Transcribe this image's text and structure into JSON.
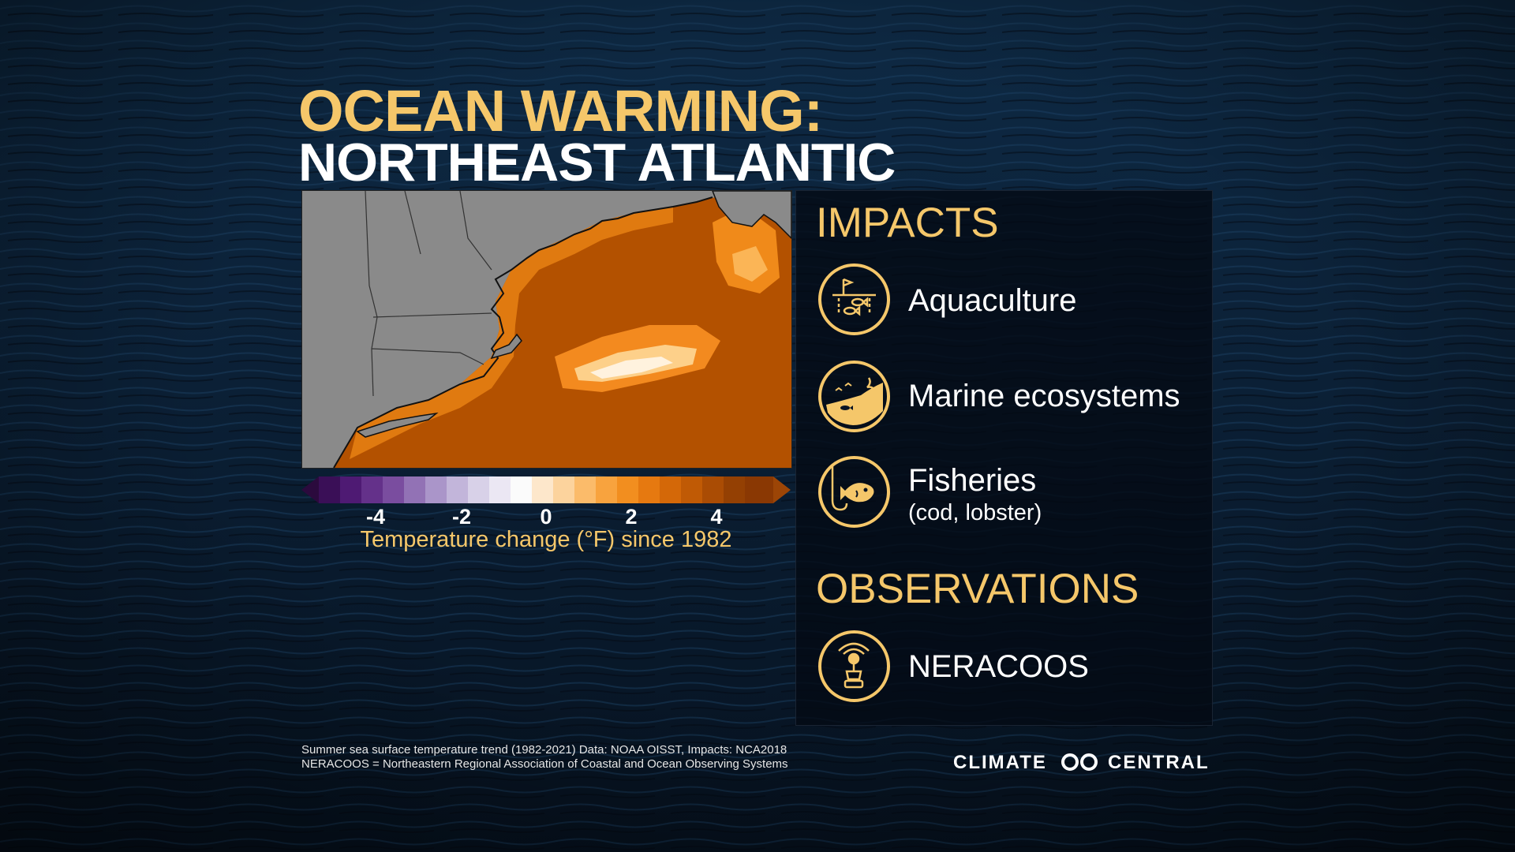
{
  "title": {
    "line1": "OCEAN WARMING:",
    "line2": "NORTHEAST ATLANTIC"
  },
  "map": {
    "colorbar": {
      "ticks": [
        "-4",
        "-2",
        "0",
        "2",
        "4"
      ],
      "label": "Temperature change (°F) since 1982"
    }
  },
  "impacts": {
    "heading": "IMPACTS",
    "items": [
      {
        "label": "Aquaculture",
        "icon": "aquaculture-icon"
      },
      {
        "label": "Marine ecosystems",
        "icon": "marine-ecosystem-icon"
      },
      {
        "label": "Fisheries",
        "sub": "(cod, lobster)",
        "icon": "fish-hook-icon"
      }
    ]
  },
  "observations": {
    "heading": "OBSERVATIONS",
    "items": [
      {
        "label": "NERACOOS",
        "icon": "buoy-icon"
      }
    ]
  },
  "footnotes": [
    "Summer sea surface temperature trend (1982-2021) Data: NOAA OISST, Impacts: NCA2018",
    "NERACOOS = Northeastern Regional Association of Coastal and Ocean Observing Systems"
  ],
  "logo": {
    "left": "CLIMATE",
    "right": "CENTRAL"
  },
  "colors": {
    "accent": "#f5c76a",
    "panel": "#05090f",
    "warm": "#c25a05",
    "land": "#8a8a8a"
  }
}
